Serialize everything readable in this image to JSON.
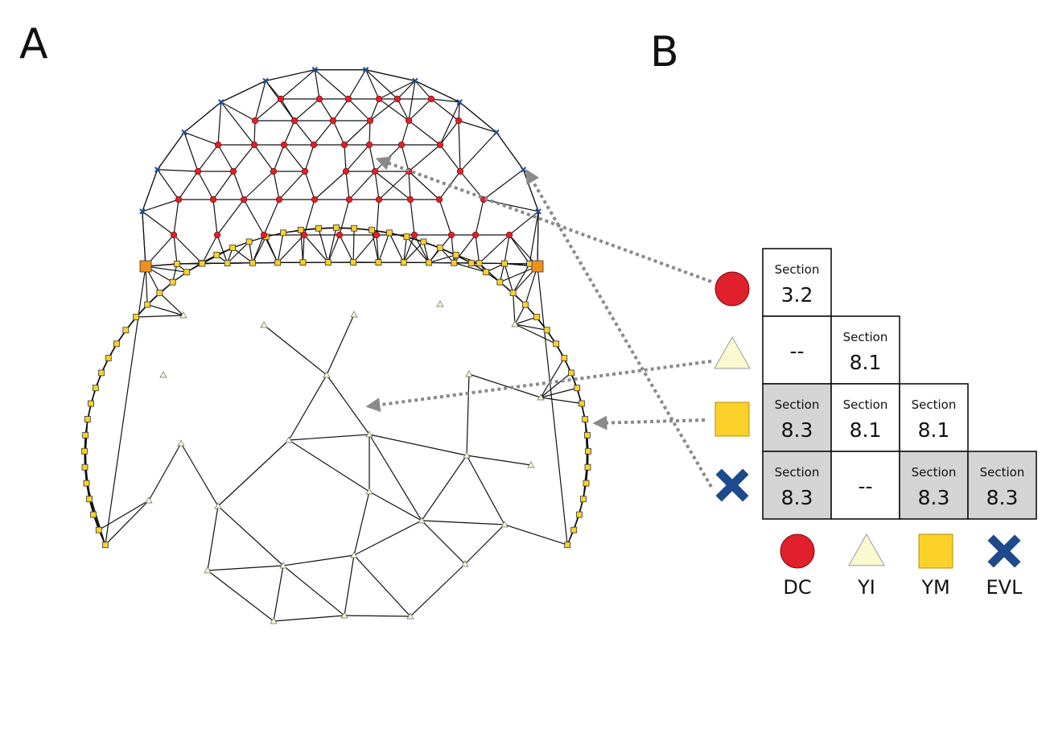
{
  "panel_labels": {
    "a": "A",
    "b": "B"
  },
  "colors": {
    "dc": "#e0202a",
    "yi": "#fbf9cf",
    "ym": "#fcd12a",
    "evl": "#1c4a8c",
    "corner": "#f0901a",
    "shaded": "#d4d4d4",
    "arrow": "#8a8a8a"
  },
  "legend": [
    {
      "marker": "circle",
      "label": "DC"
    },
    {
      "marker": "triangle",
      "label": "YI"
    },
    {
      "marker": "square",
      "label": "YM"
    },
    {
      "marker": "cross",
      "label": "EVL"
    }
  ],
  "matrix": [
    [
      {
        "label": "Section",
        "value": "3.2",
        "shaded": false
      }
    ],
    [
      {
        "label": "",
        "value": "--",
        "shaded": false
      },
      {
        "label": "Section",
        "value": "8.1",
        "shaded": false
      }
    ],
    [
      {
        "label": "Section",
        "value": "8.3",
        "shaded": true
      },
      {
        "label": "Section",
        "value": "8.1",
        "shaded": false
      },
      {
        "label": "Section",
        "value": "8.1",
        "shaded": false
      }
    ],
    [
      {
        "label": "Section",
        "value": "8.3",
        "shaded": true
      },
      {
        "label": "",
        "value": "--",
        "shaded": false
      },
      {
        "label": "Section",
        "value": "8.3",
        "shaded": true
      },
      {
        "label": "Section",
        "value": "8.3",
        "shaded": true
      }
    ]
  ]
}
